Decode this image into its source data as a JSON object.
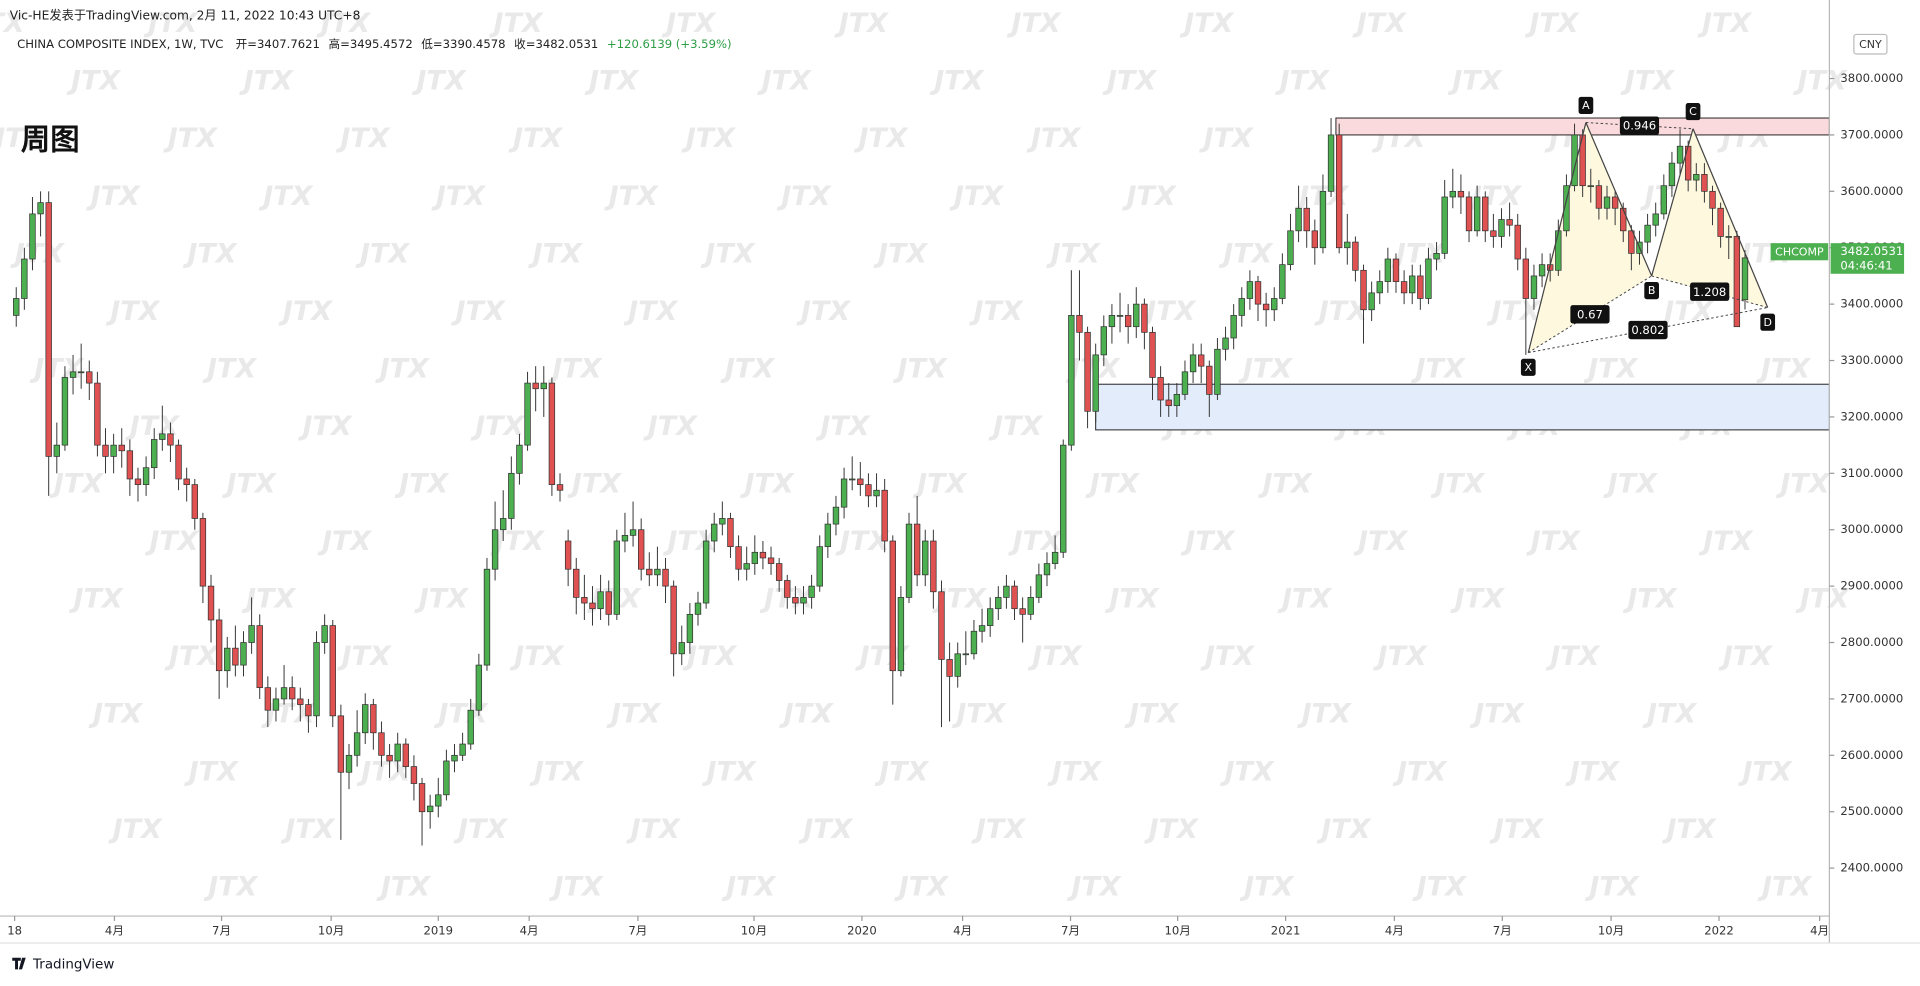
{
  "chart_data": {
    "type": "candlestick",
    "header": "Vic-HE发表于TradingView.com, 2月 11, 2022 10:43 UTC+8",
    "symbol": "CHINA COMPOSITE INDEX, 1W, TVC",
    "legend": [
      "开=3407.7621",
      "高=3495.4572",
      "低=3390.4578",
      "收=3482.0531",
      "+120.6139 (+3.59%)"
    ],
    "title": "周图",
    "currency": "CNY",
    "ticker": "CHCOMP",
    "last_price": 3482.0531,
    "countdown": "04:46:41",
    "brand": "TradingView",
    "watermark": "JTX",
    "up_color": "#4caf50",
    "down_color": "#e05252",
    "xlim": [
      -2,
      223.4
    ],
    "ylim": [
      2315,
      3939
    ],
    "xticks": [
      {
        "value": -0.2,
        "label": "18"
      },
      {
        "value": 12.1,
        "label": "4月"
      },
      {
        "value": 25.3,
        "label": "7月"
      },
      {
        "value": 38.8,
        "label": "10月"
      },
      {
        "value": 52.0,
        "label": "2019"
      },
      {
        "value": 63.2,
        "label": "4月"
      },
      {
        "value": 76.6,
        "label": "7月"
      },
      {
        "value": 90.9,
        "label": "10月"
      },
      {
        "value": 104.2,
        "label": "2020"
      },
      {
        "value": 116.6,
        "label": "4月"
      },
      {
        "value": 129.9,
        "label": "7月"
      },
      {
        "value": 143.1,
        "label": "10月"
      },
      {
        "value": 156.4,
        "label": "2021"
      },
      {
        "value": 169.8,
        "label": "4月"
      },
      {
        "value": 183.1,
        "label": "7月"
      },
      {
        "value": 196.5,
        "label": "10月"
      },
      {
        "value": 209.8,
        "label": "2022"
      },
      {
        "value": 222.2,
        "label": "4月"
      }
    ],
    "yticks": [
      {
        "value": 2400,
        "label": "2400.0000"
      },
      {
        "value": 2500,
        "label": "2500.0000"
      },
      {
        "value": 2600,
        "label": "2600.0000"
      },
      {
        "value": 2700,
        "label": "2700.0000"
      },
      {
        "value": 2800,
        "label": "2800.0000"
      },
      {
        "value": 2900,
        "label": "2900.0000"
      },
      {
        "value": 3000,
        "label": "3000.0000"
      },
      {
        "value": 3100,
        "label": "3100.0000"
      },
      {
        "value": 3200,
        "label": "3200.0000"
      },
      {
        "value": 3300,
        "label": "3300.0000"
      },
      {
        "value": 3400,
        "label": "3400.0000"
      },
      {
        "value": 3500,
        "label": "3500.0000"
      },
      {
        "value": 3600,
        "label": "3600.0000"
      },
      {
        "value": 3700,
        "label": "3700.0000"
      },
      {
        "value": 3800,
        "label": "3800.0000"
      }
    ],
    "zones": [
      {
        "low": 3700,
        "high": 3730,
        "start": 162.6,
        "color": "#fadadd"
      },
      {
        "low": 3177,
        "high": 3258,
        "start": 133.0,
        "color": "#e3ecfb"
      }
    ],
    "pattern": {
      "fill": "#fdf8de",
      "points": [
        {
          "label": "X",
          "x": 186.3,
          "y": 3314
        },
        {
          "label": "A",
          "x": 193.4,
          "y": 3722
        },
        {
          "label": "B",
          "x": 201.5,
          "y": 3450
        },
        {
          "label": "C",
          "x": 206.6,
          "y": 3711
        },
        {
          "label": "D",
          "x": 215.8,
          "y": 3394
        }
      ],
      "ratios": [
        0.946,
        0.67,
        1.208,
        0.802
      ]
    },
    "ohlc": [
      [
        3380,
        3430,
        3360,
        3410
      ],
      [
        3410,
        3500,
        3390,
        3480
      ],
      [
        3480,
        3590,
        3460,
        3560
      ],
      [
        3560,
        3600,
        3520,
        3580
      ],
      [
        3580,
        3600,
        3060,
        3130
      ],
      [
        3130,
        3190,
        3100,
        3150
      ],
      [
        3150,
        3290,
        3140,
        3270
      ],
      [
        3270,
        3310,
        3240,
        3280
      ],
      [
        3280,
        3330,
        3250,
        3280
      ],
      [
        3280,
        3300,
        3230,
        3260
      ],
      [
        3260,
        3280,
        3130,
        3150
      ],
      [
        3150,
        3180,
        3100,
        3130
      ],
      [
        3130,
        3170,
        3100,
        3150
      ],
      [
        3150,
        3180,
        3110,
        3140
      ],
      [
        3140,
        3160,
        3060,
        3090
      ],
      [
        3090,
        3110,
        3050,
        3080
      ],
      [
        3080,
        3130,
        3060,
        3110
      ],
      [
        3110,
        3180,
        3090,
        3160
      ],
      [
        3160,
        3220,
        3140,
        3170
      ],
      [
        3170,
        3190,
        3120,
        3150
      ],
      [
        3150,
        3160,
        3070,
        3090
      ],
      [
        3090,
        3110,
        3050,
        3080
      ],
      [
        3080,
        3090,
        3000,
        3020
      ],
      [
        3020,
        3030,
        2870,
        2900
      ],
      [
        2900,
        2920,
        2800,
        2840
      ],
      [
        2840,
        2860,
        2700,
        2750
      ],
      [
        2750,
        2810,
        2720,
        2790
      ],
      [
        2790,
        2830,
        2740,
        2760
      ],
      [
        2760,
        2820,
        2740,
        2800
      ],
      [
        2800,
        2880,
        2780,
        2830
      ],
      [
        2830,
        2850,
        2700,
        2720
      ],
      [
        2720,
        2740,
        2650,
        2680
      ],
      [
        2680,
        2720,
        2660,
        2700
      ],
      [
        2700,
        2760,
        2690,
        2720
      ],
      [
        2720,
        2740,
        2680,
        2700
      ],
      [
        2700,
        2720,
        2660,
        2690
      ],
      [
        2690,
        2700,
        2640,
        2670
      ],
      [
        2670,
        2820,
        2650,
        2800
      ],
      [
        2800,
        2850,
        2780,
        2830
      ],
      [
        2830,
        2840,
        2650,
        2670
      ],
      [
        2670,
        2690,
        2450,
        2570
      ],
      [
        2570,
        2620,
        2540,
        2600
      ],
      [
        2600,
        2680,
        2580,
        2640
      ],
      [
        2640,
        2710,
        2620,
        2690
      ],
      [
        2690,
        2700,
        2610,
        2640
      ],
      [
        2640,
        2660,
        2580,
        2600
      ],
      [
        2600,
        2620,
        2560,
        2590
      ],
      [
        2590,
        2640,
        2570,
        2620
      ],
      [
        2620,
        2630,
        2560,
        2580
      ],
      [
        2580,
        2600,
        2520,
        2550
      ],
      [
        2550,
        2560,
        2440,
        2500
      ],
      [
        2500,
        2530,
        2470,
        2510
      ],
      [
        2510,
        2560,
        2490,
        2530
      ],
      [
        2530,
        2610,
        2520,
        2590
      ],
      [
        2590,
        2620,
        2570,
        2600
      ],
      [
        2600,
        2640,
        2590,
        2620
      ],
      [
        2620,
        2700,
        2610,
        2680
      ],
      [
        2680,
        2780,
        2670,
        2760
      ],
      [
        2760,
        2950,
        2750,
        2930
      ],
      [
        2930,
        3050,
        2910,
        3000
      ],
      [
        3000,
        3070,
        2980,
        3020
      ],
      [
        3020,
        3130,
        3000,
        3100
      ],
      [
        3100,
        3170,
        3080,
        3150
      ],
      [
        3150,
        3280,
        3140,
        3260
      ],
      [
        3260,
        3290,
        3210,
        3250
      ],
      [
        3250,
        3290,
        3200,
        3260
      ],
      [
        3260,
        3270,
        3060,
        3080
      ],
      [
        3080,
        3100,
        3050,
        3070
      ],
      [
        2980,
        3000,
        2900,
        2930
      ],
      [
        2930,
        2950,
        2850,
        2880
      ],
      [
        2880,
        2920,
        2840,
        2870
      ],
      [
        2870,
        2900,
        2830,
        2860
      ],
      [
        2860,
        2920,
        2840,
        2890
      ],
      [
        2890,
        2910,
        2830,
        2850
      ],
      [
        2850,
        3000,
        2840,
        2980
      ],
      [
        2980,
        3030,
        2960,
        2990
      ],
      [
        2990,
        3050,
        2970,
        3000
      ],
      [
        3000,
        3020,
        2910,
        2930
      ],
      [
        2930,
        2960,
        2900,
        2920
      ],
      [
        2920,
        2970,
        2900,
        2930
      ],
      [
        2930,
        2950,
        2870,
        2900
      ],
      [
        2900,
        2910,
        2740,
        2780
      ],
      [
        2780,
        2830,
        2760,
        2800
      ],
      [
        2800,
        2870,
        2780,
        2850
      ],
      [
        2850,
        2890,
        2830,
        2870
      ],
      [
        2870,
        3000,
        2860,
        2980
      ],
      [
        2980,
        3030,
        2960,
        3010
      ],
      [
        3010,
        3050,
        2990,
        3020
      ],
      [
        3020,
        3030,
        2950,
        2970
      ],
      [
        2970,
        2990,
        2910,
        2930
      ],
      [
        2930,
        2970,
        2910,
        2940
      ],
      [
        2940,
        2990,
        2920,
        2960
      ],
      [
        2960,
        2980,
        2930,
        2950
      ],
      [
        2950,
        2970,
        2920,
        2940
      ],
      [
        2940,
        2950,
        2890,
        2910
      ],
      [
        2910,
        2920,
        2860,
        2880
      ],
      [
        2880,
        2900,
        2850,
        2870
      ],
      [
        2870,
        2900,
        2850,
        2880
      ],
      [
        2880,
        2920,
        2860,
        2900
      ],
      [
        2900,
        2990,
        2890,
        2970
      ],
      [
        2970,
        3030,
        2950,
        3010
      ],
      [
        3010,
        3060,
        2990,
        3040
      ],
      [
        3040,
        3110,
        3020,
        3090
      ],
      [
        3090,
        3130,
        3070,
        3090
      ],
      [
        3090,
        3120,
        3060,
        3080
      ],
      [
        3080,
        3100,
        3040,
        3060
      ],
      [
        3060,
        3100,
        3040,
        3070
      ],
      [
        3070,
        3090,
        2960,
        2980
      ],
      [
        2980,
        2990,
        2690,
        2750
      ],
      [
        2750,
        2900,
        2740,
        2880
      ],
      [
        2880,
        3030,
        2870,
        3010
      ],
      [
        3010,
        3060,
        2900,
        2920
      ],
      [
        2920,
        3000,
        2900,
        2980
      ],
      [
        2980,
        3000,
        2860,
        2890
      ],
      [
        2890,
        2910,
        2650,
        2770
      ],
      [
        2770,
        2800,
        2660,
        2740
      ],
      [
        2740,
        2800,
        2720,
        2780
      ],
      [
        2780,
        2820,
        2760,
        2780
      ],
      [
        2780,
        2840,
        2770,
        2820
      ],
      [
        2820,
        2860,
        2800,
        2830
      ],
      [
        2830,
        2880,
        2810,
        2860
      ],
      [
        2860,
        2900,
        2840,
        2880
      ],
      [
        2880,
        2920,
        2860,
        2900
      ],
      [
        2900,
        2910,
        2840,
        2860
      ],
      [
        2860,
        2880,
        2800,
        2850
      ],
      [
        2850,
        2900,
        2840,
        2880
      ],
      [
        2880,
        2940,
        2870,
        2920
      ],
      [
        2920,
        2960,
        2900,
        2940
      ],
      [
        2940,
        2990,
        2930,
        2960
      ],
      [
        2960,
        3160,
        2950,
        3150
      ],
      [
        3150,
        3460,
        3140,
        3380
      ],
      [
        3380,
        3460,
        3300,
        3350
      ],
      [
        3350,
        3360,
        3180,
        3210
      ],
      [
        3210,
        3330,
        3190,
        3310
      ],
      [
        3310,
        3380,
        3290,
        3360
      ],
      [
        3360,
        3400,
        3330,
        3380
      ],
      [
        3380,
        3420,
        3350,
        3380
      ],
      [
        3380,
        3400,
        3330,
        3360
      ],
      [
        3360,
        3430,
        3340,
        3400
      ],
      [
        3400,
        3410,
        3320,
        3350
      ],
      [
        3350,
        3360,
        3230,
        3270
      ],
      [
        3270,
        3290,
        3200,
        3230
      ],
      [
        3230,
        3260,
        3200,
        3220
      ],
      [
        3220,
        3260,
        3200,
        3240
      ],
      [
        3240,
        3300,
        3230,
        3280
      ],
      [
        3280,
        3330,
        3260,
        3310
      ],
      [
        3310,
        3330,
        3260,
        3290
      ],
      [
        3290,
        3300,
        3200,
        3240
      ],
      [
        3240,
        3340,
        3230,
        3320
      ],
      [
        3320,
        3360,
        3300,
        3340
      ],
      [
        3340,
        3400,
        3320,
        3380
      ],
      [
        3380,
        3430,
        3360,
        3410
      ],
      [
        3410,
        3460,
        3390,
        3440
      ],
      [
        3440,
        3450,
        3370,
        3400
      ],
      [
        3400,
        3420,
        3360,
        3390
      ],
      [
        3390,
        3430,
        3370,
        3410
      ],
      [
        3410,
        3490,
        3400,
        3470
      ],
      [
        3470,
        3560,
        3460,
        3530
      ],
      [
        3530,
        3610,
        3510,
        3570
      ],
      [
        3570,
        3590,
        3500,
        3530
      ],
      [
        3530,
        3550,
        3470,
        3500
      ],
      [
        3500,
        3630,
        3490,
        3600
      ],
      [
        3600,
        3730,
        3590,
        3700
      ],
      [
        3700,
        3720,
        3490,
        3500
      ],
      [
        3500,
        3560,
        3470,
        3510
      ],
      [
        3510,
        3520,
        3440,
        3460
      ],
      [
        3460,
        3470,
        3330,
        3390
      ],
      [
        3390,
        3440,
        3370,
        3420
      ],
      [
        3420,
        3460,
        3400,
        3440
      ],
      [
        3440,
        3500,
        3420,
        3480
      ],
      [
        3480,
        3490,
        3420,
        3440
      ],
      [
        3440,
        3460,
        3400,
        3420
      ],
      [
        3420,
        3470,
        3400,
        3450
      ],
      [
        3450,
        3470,
        3390,
        3410
      ],
      [
        3410,
        3500,
        3400,
        3480
      ],
      [
        3480,
        3510,
        3460,
        3490
      ],
      [
        3490,
        3620,
        3480,
        3590
      ],
      [
        3590,
        3640,
        3570,
        3600
      ],
      [
        3600,
        3630,
        3560,
        3590
      ],
      [
        3590,
        3600,
        3510,
        3530
      ],
      [
        3530,
        3610,
        3520,
        3590
      ],
      [
        3590,
        3600,
        3510,
        3530
      ],
      [
        3530,
        3560,
        3500,
        3520
      ],
      [
        3520,
        3570,
        3500,
        3550
      ],
      [
        3550,
        3580,
        3520,
        3540
      ],
      [
        3540,
        3560,
        3460,
        3480
      ],
      [
        3480,
        3500,
        3310,
        3410
      ],
      [
        3410,
        3470,
        3390,
        3450
      ],
      [
        3450,
        3490,
        3430,
        3470
      ],
      [
        3470,
        3490,
        3440,
        3460
      ],
      [
        3460,
        3550,
        3450,
        3530
      ],
      [
        3530,
        3630,
        3520,
        3610
      ],
      [
        3610,
        3720,
        3600,
        3700
      ],
      [
        3700,
        3710,
        3590,
        3610
      ],
      [
        3610,
        3640,
        3580,
        3610
      ],
      [
        3610,
        3620,
        3550,
        3570
      ],
      [
        3570,
        3610,
        3550,
        3590
      ],
      [
        3590,
        3600,
        3540,
        3570
      ],
      [
        3570,
        3580,
        3510,
        3530
      ],
      [
        3530,
        3540,
        3460,
        3490
      ],
      [
        3490,
        3530,
        3470,
        3510
      ],
      [
        3510,
        3560,
        3490,
        3540
      ],
      [
        3540,
        3580,
        3520,
        3560
      ],
      [
        3560,
        3630,
        3550,
        3610
      ],
      [
        3610,
        3670,
        3590,
        3650
      ],
      [
        3650,
        3710,
        3630,
        3680
      ],
      [
        3680,
        3690,
        3600,
        3620
      ],
      [
        3620,
        3650,
        3600,
        3630
      ],
      [
        3630,
        3650,
        3580,
        3600
      ],
      [
        3600,
        3610,
        3540,
        3570
      ],
      [
        3570,
        3580,
        3500,
        3520
      ],
      [
        3520,
        3540,
        3480,
        3520
      ],
      [
        3520,
        3530,
        3360,
        3360
      ],
      [
        3407.7621,
        3495.4572,
        3390.4578,
        3482.0531
      ]
    ]
  }
}
